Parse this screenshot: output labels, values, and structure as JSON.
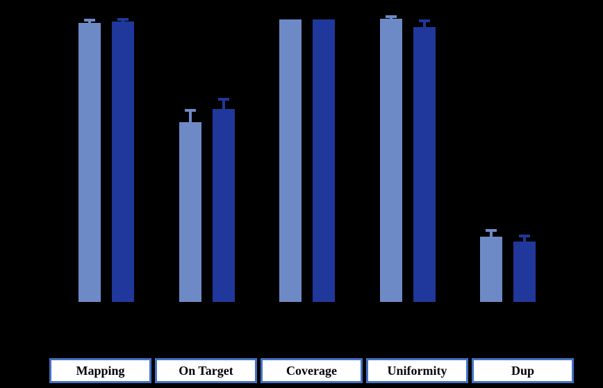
{
  "background_color": "#000000",
  "chart_data": {
    "type": "bar",
    "categories": [
      "Mapping",
      "On Target",
      "Coverage",
      "Uniformity",
      "Dup"
    ],
    "series": [
      {
        "name": "light-blue-series",
        "color": "#6E8AC6",
        "values": [
          98.6,
          63.5,
          99.8,
          100.0,
          23.0
        ],
        "errors": [
          0.6,
          3.9,
          0,
          0.5,
          2.0
        ]
      },
      {
        "name": "dark-blue-series",
        "color": "#20389B",
        "values": [
          99.0,
          68.1,
          99.8,
          97.1,
          21.3
        ],
        "errors": [
          0.6,
          3.2,
          0,
          1.9,
          1.7
        ]
      }
    ],
    "ylim": [
      0,
      100
    ],
    "grid": false,
    "legend_position": "none",
    "error_bars": true,
    "axes_visible": false,
    "category_label_style": {
      "box_fill": "#FFFFFF",
      "box_border": "#4472C4",
      "text_color": "#000000"
    }
  }
}
